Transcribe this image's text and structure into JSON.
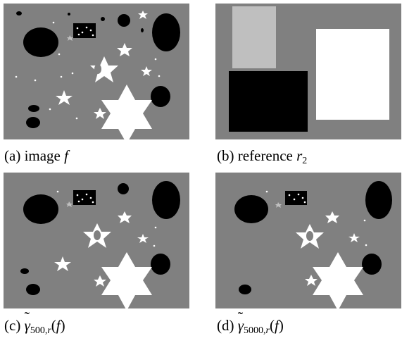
{
  "panels": {
    "a": {
      "label": "(a)",
      "text": "image",
      "var": "f"
    },
    "b": {
      "label": "(b)",
      "text": "reference",
      "var": "r",
      "var_sub": "2"
    },
    "c": {
      "label": "(c)",
      "func": "γ",
      "sub": "500,",
      "sub_var": "r",
      "arg_open": "(",
      "arg": "f",
      "arg_close": ")"
    },
    "d": {
      "label": "(d)",
      "func": "γ",
      "sub": "5000,",
      "sub_var": "r",
      "arg_open": "(",
      "arg": "f",
      "arg_close": ")"
    }
  },
  "colors": {
    "background": "#808080",
    "dark": "#000000",
    "light": "#ffffff",
    "mid_light": "#bfbfbf"
  }
}
